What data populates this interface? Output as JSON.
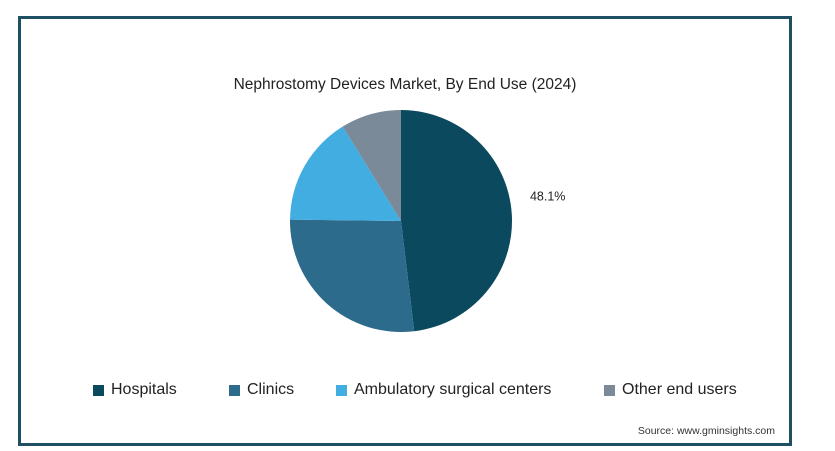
{
  "chart_data": {
    "type": "pie",
    "title": "Nephrostomy Devices Market, By End Use (2024)",
    "categories": [
      "Hospitals",
      "Clinics",
      "Ambulatory surgical centers",
      "Other end users"
    ],
    "values": [
      48.1,
      27.1,
      16.0,
      8.8
    ],
    "data_labels": [
      "48.1%",
      "",
      "",
      ""
    ],
    "colors": [
      "#0b4a5e",
      "#2d6b8c",
      "#41ade1",
      "#7a8a99"
    ],
    "legend_position": "bottom"
  },
  "source": "Source: www.gminsights.com"
}
